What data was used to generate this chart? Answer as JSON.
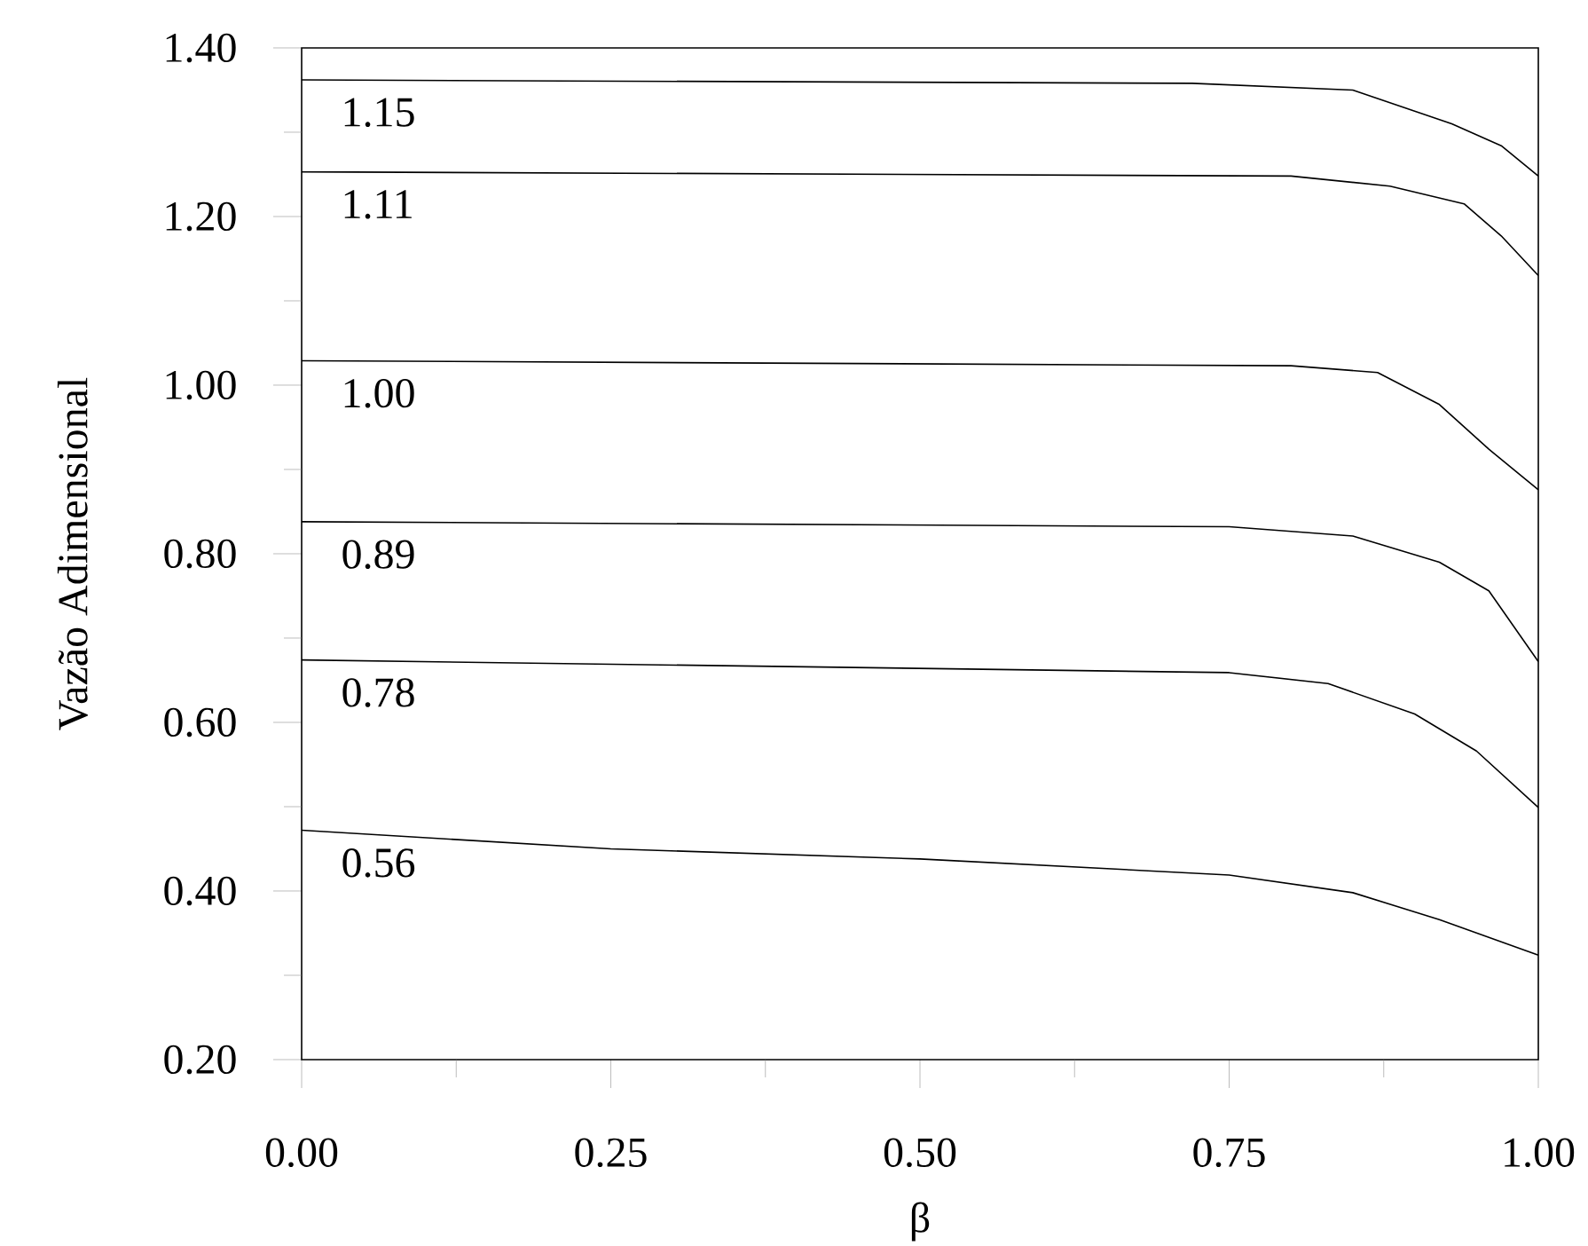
{
  "chart_data": {
    "type": "line",
    "xlabel": "β",
    "ylabel": "Vazão Adimensional",
    "xlim": [
      0,
      1
    ],
    "ylim": [
      0.2,
      1.4
    ],
    "xticks": [
      {
        "value": 0,
        "label": "0.00"
      },
      {
        "value": 0.125,
        "label": null
      },
      {
        "value": 0.25,
        "label": "0.25"
      },
      {
        "value": 0.375,
        "label": null
      },
      {
        "value": 0.5,
        "label": "0.50"
      },
      {
        "value": 0.625,
        "label": null
      },
      {
        "value": 0.75,
        "label": "0.75"
      },
      {
        "value": 0.875,
        "label": null
      },
      {
        "value": 1,
        "label": "1.00"
      }
    ],
    "yticks": [
      {
        "value": 0.2,
        "label": "0.20"
      },
      {
        "value": 0.3,
        "label": null
      },
      {
        "value": 0.4,
        "label": "0.40"
      },
      {
        "value": 0.5,
        "label": null
      },
      {
        "value": 0.6,
        "label": "0.60"
      },
      {
        "value": 0.7,
        "label": null
      },
      {
        "value": 0.8,
        "label": "0.80"
      },
      {
        "value": 0.9,
        "label": null
      },
      {
        "value": 1.0,
        "label": "1.00"
      },
      {
        "value": 1.1,
        "label": null
      },
      {
        "value": 1.2,
        "label": "1.20"
      },
      {
        "value": 1.3,
        "label": null
      },
      {
        "value": 1.4,
        "label": "1.40"
      }
    ],
    "marker": "none",
    "line_style": "solid",
    "series": [
      {
        "name": "1.15",
        "color": "#000000",
        "x": [
          0,
          0.72,
          0.85,
          0.93,
          0.97,
          1.0
        ],
        "values": [
          1.362,
          1.358,
          1.35,
          1.31,
          1.284,
          1.248
        ]
      },
      {
        "name": "1.11",
        "color": "#000000",
        "x": [
          0,
          0.8,
          0.88,
          0.94,
          0.97,
          1.0
        ],
        "values": [
          1.253,
          1.248,
          1.236,
          1.215,
          1.177,
          1.13
        ]
      },
      {
        "name": "1.00",
        "color": "#000000",
        "x": [
          0,
          0.8,
          0.87,
          0.92,
          0.96,
          1.0
        ],
        "values": [
          1.029,
          1.023,
          1.015,
          0.977,
          0.924,
          0.876
        ]
      },
      {
        "name": "0.89",
        "color": "#000000",
        "x": [
          0,
          0.75,
          0.85,
          0.92,
          0.96,
          1.0
        ],
        "values": [
          0.838,
          0.832,
          0.821,
          0.79,
          0.756,
          0.672
        ]
      },
      {
        "name": "0.78",
        "color": "#000000",
        "x": [
          0,
          0.75,
          0.83,
          0.9,
          0.95,
          1.0
        ],
        "values": [
          0.674,
          0.659,
          0.646,
          0.61,
          0.566,
          0.499
        ]
      },
      {
        "name": "0.56",
        "color": "#000000",
        "x": [
          0,
          0.25,
          0.5,
          0.75,
          0.85,
          0.92,
          1.0
        ],
        "values": [
          0.472,
          0.45,
          0.438,
          0.419,
          0.398,
          0.366,
          0.324
        ]
      }
    ]
  }
}
